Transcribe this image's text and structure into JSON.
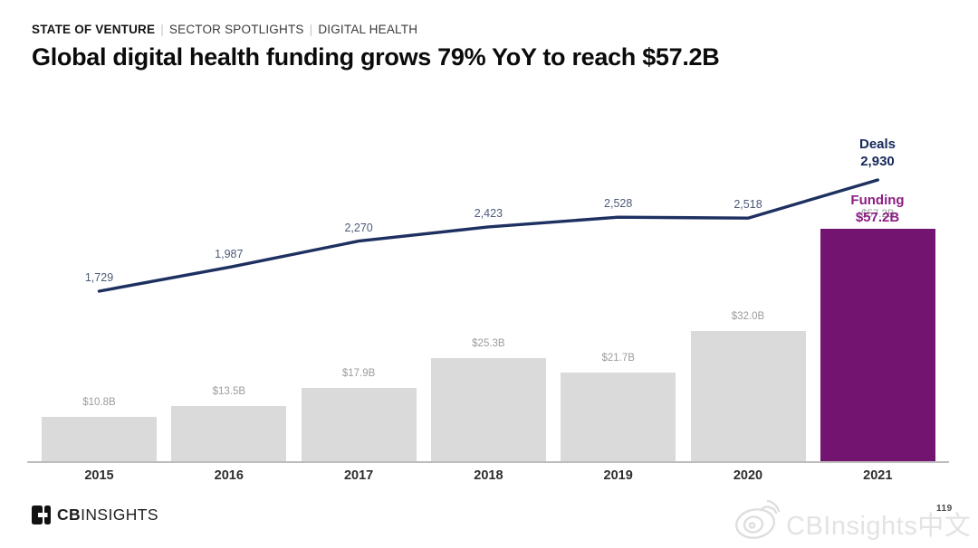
{
  "header": {
    "kicker": {
      "report": "STATE OF VENTURE",
      "separator": "|",
      "section": "SECTOR SPOTLIGHTS",
      "subsection": "DIGITAL HEALTH"
    },
    "title": "Global digital health funding grows 79% YoY to reach $57.2B"
  },
  "chart_data": {
    "type": "bar",
    "subtype": "bar-with-line-overlay",
    "categories": [
      "2015",
      "2016",
      "2017",
      "2018",
      "2019",
      "2020",
      "2021"
    ],
    "series": [
      {
        "name": "Funding ($B)",
        "type": "bar",
        "values": [
          10.8,
          13.5,
          17.9,
          25.3,
          21.7,
          32.0,
          57.2
        ],
        "labels": [
          "$10.8B",
          "$13.5B",
          "$17.9B",
          "$25.3B",
          "$21.7B",
          "$32.0B",
          "$57.2B"
        ]
      },
      {
        "name": "Deals",
        "type": "line",
        "values": [
          1729,
          1987,
          2270,
          2423,
          2528,
          2518,
          2930
        ],
        "labels": [
          "1,729",
          "1,987",
          "2,270",
          "2,423",
          "2,528",
          "2,518",
          "2,930"
        ]
      }
    ],
    "highlight_index": 6,
    "annotations": {
      "deals": {
        "title": "Deals",
        "value": "2,930"
      },
      "funding": {
        "title": "Funding",
        "value": "$57.2B"
      }
    },
    "colors": {
      "bar": "#dadada",
      "highlight_bar": "#731471",
      "line": "#1d3060",
      "line_label": "#4d5a77",
      "deals_text": "#16295a",
      "funding_text": "#8d1d84",
      "bar_label": "#9c9c9c",
      "axis_label": "#2d2d2d",
      "baseline": "#bdbdbd"
    },
    "grid": false,
    "ylim_bar": [
      0,
      60
    ],
    "ylim_line": [
      1600,
      3000
    ],
    "legend_position": "annotations-top-right"
  },
  "footer": {
    "logo": {
      "cb": "CB",
      "insights": "INSIGHTS"
    },
    "watermark": {
      "text": "CBInsights中文"
    },
    "page_number": "119"
  }
}
